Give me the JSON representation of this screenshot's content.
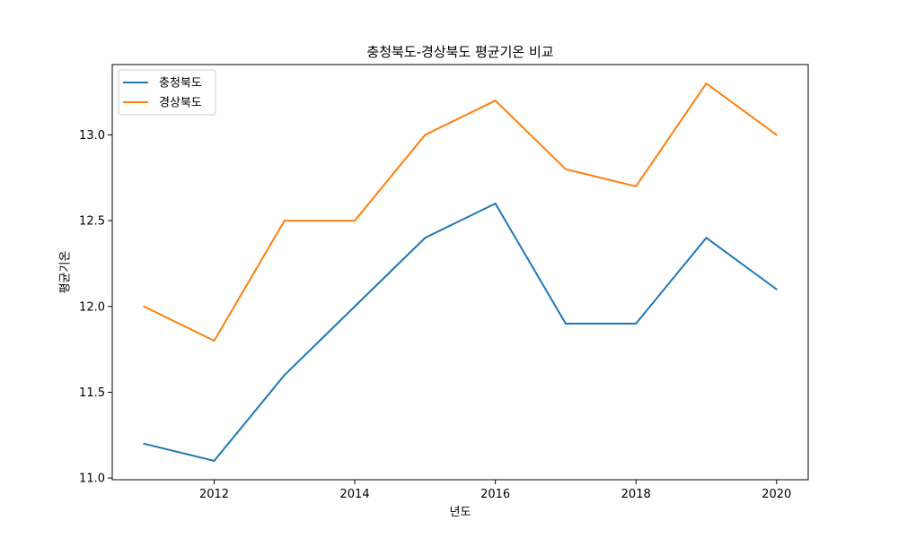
{
  "chart_data": {
    "type": "line",
    "title": "충청북도-경상북도 평균기온 비교",
    "xlabel": "년도",
    "ylabel": "평균기온",
    "x": [
      2011,
      2012,
      2013,
      2014,
      2015,
      2016,
      2017,
      2018,
      2019,
      2020
    ],
    "x_ticks": [
      "2012",
      "2014",
      "2016",
      "2018",
      "2020"
    ],
    "y_ticks": [
      "11.0",
      "11.5",
      "12.0",
      "12.5",
      "13.0"
    ],
    "xlim": [
      2010.55,
      2020.45
    ],
    "ylim": [
      10.99,
      13.41
    ],
    "grid": false,
    "legend_position": "top-left",
    "series": [
      {
        "name": "충청북도",
        "color": "#1f77b4",
        "values": [
          11.2,
          11.1,
          11.6,
          12.0,
          12.4,
          12.6,
          11.9,
          11.9,
          12.4,
          12.1
        ]
      },
      {
        "name": "경상북도",
        "color": "#ff7f0e",
        "values": [
          12.0,
          11.8,
          12.5,
          12.5,
          13.0,
          13.2,
          12.8,
          12.7,
          13.3,
          13.0
        ]
      }
    ]
  }
}
